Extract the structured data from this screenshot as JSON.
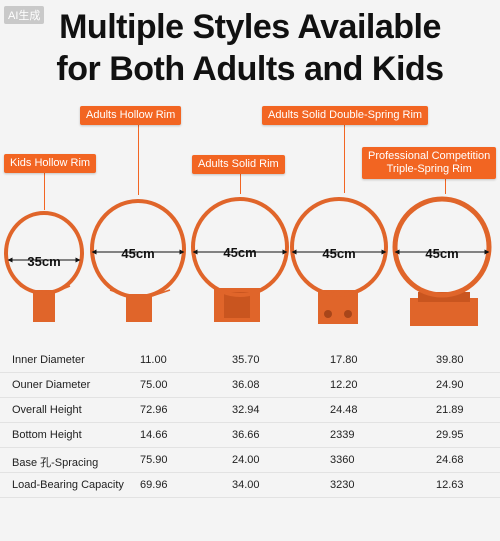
{
  "badge": "AI生成",
  "title": {
    "line1": "Multiple Styles Available",
    "line2": "for Both Adults and Kids"
  },
  "products": [
    {
      "label": "Kids Hollow Rim",
      "size": "35cm"
    },
    {
      "label": "Adults Hollow Rim",
      "size": "45cm"
    },
    {
      "label": "Adults Solid Rim",
      "size": "45cm"
    },
    {
      "label": "Adults Solid Double-Spring Rim",
      "size": "45cm"
    },
    {
      "label_line1": "Professional Competition",
      "label_line2": "Triple-Spring Rim",
      "size": "45cm"
    }
  ],
  "colors": {
    "accent": "#f26522",
    "rim": "#e0652a"
  },
  "table": [
    {
      "label": "Inner Diameter",
      "values": [
        "11.00",
        "35.70",
        "17.80",
        "39.80"
      ]
    },
    {
      "label": "Ouner Diameter",
      "values": [
        "75.00",
        "36.08",
        "12.20",
        "24.90"
      ]
    },
    {
      "label": "Overall Height",
      "values": [
        "72.96",
        "32.94",
        "24.48",
        "21.89"
      ]
    },
    {
      "label": "Bottom Height",
      "values": [
        "14.66",
        "36.66",
        "2339",
        "29.95"
      ]
    },
    {
      "label": "Base 孔-Spracing",
      "values": [
        "75.90",
        "24.00",
        "3360",
        "24.68"
      ]
    },
    {
      "label": "Load-Bearing Capacity",
      "values": [
        "69.96",
        "34.00",
        "3230",
        "12.63"
      ]
    }
  ]
}
